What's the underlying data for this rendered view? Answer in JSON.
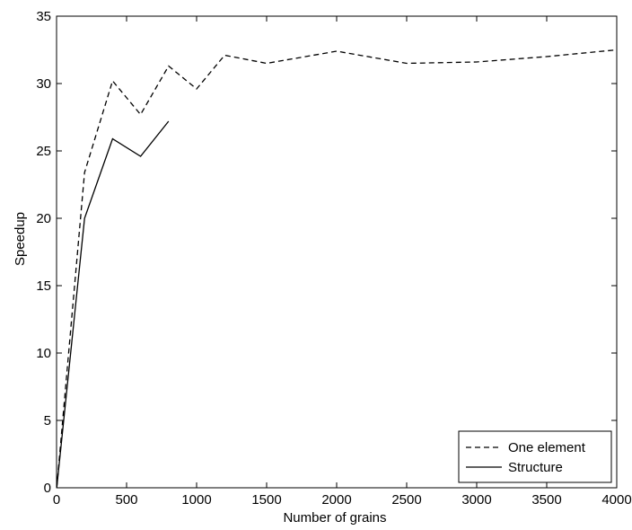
{
  "chart_data": {
    "type": "line",
    "title": "",
    "xlabel": "Number of grains",
    "ylabel": "Speedup",
    "xlim": [
      0,
      4000
    ],
    "ylim": [
      0,
      35
    ],
    "xticks": [
      0,
      500,
      1000,
      1500,
      2000,
      2500,
      3000,
      3500,
      4000
    ],
    "yticks": [
      0,
      5,
      10,
      15,
      20,
      25,
      30,
      35
    ],
    "grid": false,
    "legend_position": "bottom-right",
    "series": [
      {
        "name": "One element",
        "line_style": "dashed",
        "color": "#000000",
        "x": [
          1,
          200,
          400,
          600,
          800,
          1000,
          1200,
          1500,
          2000,
          2500,
          3000,
          3500,
          4000
        ],
        "y": [
          0,
          23.4,
          30.2,
          27.7,
          31.3,
          29.6,
          32.1,
          31.5,
          32.4,
          31.5,
          31.6,
          32.0,
          32.5
        ]
      },
      {
        "name": "Structure",
        "line_style": "solid",
        "color": "#000000",
        "x": [
          1,
          200,
          400,
          600,
          800
        ],
        "y": [
          0,
          20.0,
          25.9,
          24.6,
          27.2
        ]
      }
    ]
  }
}
